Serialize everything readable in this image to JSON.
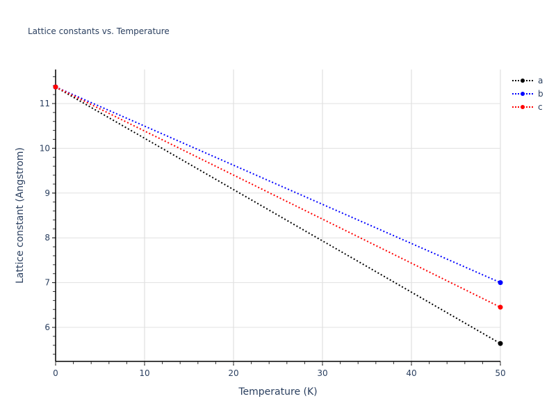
{
  "chart_data": {
    "type": "line",
    "title": "Lattice constants vs. Temperature",
    "xlabel": "Temperature (K)",
    "ylabel": "Lattice constant (Angstrom)",
    "xlim": [
      0,
      50
    ],
    "ylim": [
      5.24,
      11.76
    ],
    "x_ticks": [
      0,
      10,
      20,
      30,
      40,
      50
    ],
    "y_ticks": [
      6,
      7,
      8,
      9,
      10,
      11
    ],
    "grid": true,
    "legend_position": "top-right outside",
    "x": [
      0,
      50
    ],
    "series": [
      {
        "name": "a",
        "color": "#000000",
        "values": [
          11.37,
          5.64
        ],
        "style": "dotted line with end markers"
      },
      {
        "name": "b",
        "color": "#0000ff",
        "values": [
          11.37,
          7.0
        ],
        "style": "dotted line with end markers"
      },
      {
        "name": "c",
        "color": "#ff0000",
        "values": [
          11.37,
          6.45
        ],
        "style": "dotted line with end markers"
      }
    ]
  },
  "legend": {
    "items": [
      {
        "label": "a",
        "color": "#000000"
      },
      {
        "label": "b",
        "color": "#0000ff"
      },
      {
        "label": "c",
        "color": "#ff0000"
      }
    ]
  }
}
